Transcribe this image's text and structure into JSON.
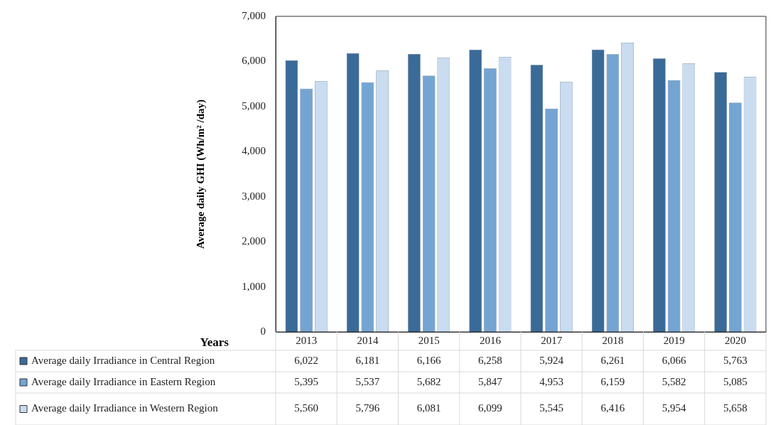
{
  "chart_data": {
    "type": "bar",
    "xlabel": "Years",
    "ylabel": "Average daily GHI (Wh/m² /day)",
    "categories": [
      "2013",
      "2014",
      "2015",
      "2016",
      "2017",
      "2018",
      "2019",
      "2020"
    ],
    "series": [
      {
        "name": "Average daily Irradiance in Central Region",
        "color": "#3a6a98",
        "values": [
          6022,
          6181,
          6166,
          6258,
          5924,
          6261,
          6066,
          5763
        ],
        "value_labels": [
          "6,022",
          "6,181",
          "6,166",
          "6,258",
          "5,924",
          "6,261",
          "6,066",
          "5,763"
        ]
      },
      {
        "name": "Average daily Irradiance in Eastern Region",
        "color": "#74a4d2",
        "values": [
          5395,
          5537,
          5682,
          5847,
          4953,
          6159,
          5582,
          5085
        ],
        "value_labels": [
          "5,395",
          "5,537",
          "5,682",
          "5,847",
          "4,953",
          "6,159",
          "5,582",
          "5,085"
        ]
      },
      {
        "name": "Average daily Irradiance in Western Region",
        "color": "#c9dcf0",
        "values": [
          5560,
          5796,
          6081,
          6099,
          5545,
          6416,
          5954,
          5658
        ],
        "value_labels": [
          "5,560",
          "5,796",
          "6,081",
          "6,099",
          "5,545",
          "6,416",
          "5,954",
          "5,658"
        ]
      }
    ],
    "ylim": [
      0,
      7000
    ],
    "yticks": [
      0,
      {
        "value": 1000,
        "label": "1,000"
      },
      {
        "value": 2000,
        "label": "2,000"
      },
      {
        "value": 3000,
        "label": "3,000"
      },
      {
        "value": 4000,
        "label": "4,000"
      },
      {
        "value": 5000,
        "label": "5,000"
      },
      {
        "value": 6000,
        "label": "6,000"
      },
      {
        "value": 7000,
        "label": "7,000"
      }
    ],
    "grid": false,
    "legend": "bottom"
  }
}
